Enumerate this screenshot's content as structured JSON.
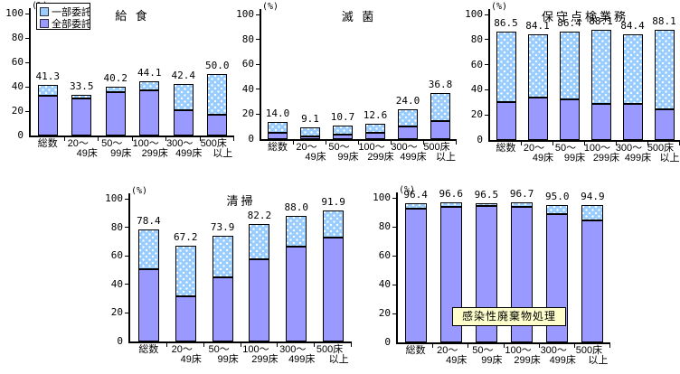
{
  "colors": {
    "partial_fill": "#99CCFF",
    "partial_dot": "#FFFFFF",
    "full_fill": "#9999FF",
    "separator": "#000000",
    "axis": "#000000",
    "title_box_bg": "#FFFFCC"
  },
  "legend": {
    "items": [
      {
        "label": "一部委託",
        "style": "dots"
      },
      {
        "label": "全部委託",
        "style": "solid"
      }
    ]
  },
  "category_lines": [
    [
      "総数"
    ],
    [
      "20〜",
      "49床"
    ],
    [
      "50〜",
      "99床"
    ],
    [
      "100〜",
      "299床"
    ],
    [
      "300〜",
      "499床"
    ],
    [
      "500床",
      "以上"
    ]
  ],
  "chart_data": [
    {
      "type": "stacked-bar",
      "title": "給 食",
      "unit": "(%)",
      "ylim": [
        0,
        100
      ],
      "yticks": [
        0,
        20,
        40,
        60,
        80,
        100
      ],
      "legend_position": "top-left",
      "categories": [
        "総数",
        "20〜49床",
        "50〜99床",
        "100〜299床",
        "300〜499床",
        "500床以上"
      ],
      "totals": [
        41.3,
        33.5,
        40.2,
        44.1,
        42.4,
        50.0
      ],
      "labels": [
        "41.3",
        "33.5",
        "40.2",
        "44.1",
        "42.4",
        "50.0"
      ],
      "series": [
        {
          "name": "全部委託",
          "values": [
            31.5,
            29.5,
            35.0,
            36.0,
            20.0,
            16.0
          ]
        },
        {
          "name": "一部委託",
          "values": [
            9.8,
            4.0,
            5.2,
            8.1,
            22.4,
            34.0
          ]
        }
      ]
    },
    {
      "type": "stacked-bar",
      "title": "滅 菌",
      "unit": "(%)",
      "ylim": [
        0,
        100
      ],
      "yticks": [
        0,
        20,
        40,
        60,
        80,
        100
      ],
      "categories": [
        "総数",
        "20〜49床",
        "50〜99床",
        "100〜299床",
        "300〜499床",
        "500床以上"
      ],
      "totals": [
        14.0,
        9.1,
        10.7,
        12.6,
        24.0,
        36.8
      ],
      "labels": [
        "14.0",
        "9.1",
        "10.7",
        "12.6",
        "24.0",
        "36.8"
      ],
      "series": [
        {
          "name": "全部委託",
          "values": [
            4.5,
            1.5,
            3.0,
            4.5,
            9.5,
            13.5
          ]
        },
        {
          "name": "一部委託",
          "values": [
            9.5,
            7.6,
            7.7,
            8.1,
            14.5,
            23.3
          ]
        }
      ]
    },
    {
      "type": "stacked-bar",
      "title": "保守点検業務",
      "unit": "(%)",
      "ylim": [
        0,
        100
      ],
      "yticks": [
        0,
        20,
        40,
        60,
        80,
        100
      ],
      "categories": [
        "総数",
        "20〜49床",
        "50〜99床",
        "100〜299床",
        "300〜499床",
        "500床以上"
      ],
      "totals": [
        86.5,
        84.1,
        86.4,
        88.1,
        84.4,
        88.1
      ],
      "labels": [
        "86.5",
        "84.1",
        "86.4",
        "88.1",
        "84.4",
        "88.1"
      ],
      "series": [
        {
          "name": "全部委託",
          "values": [
            29.5,
            33.0,
            31.5,
            28.0,
            28.0,
            24.0
          ]
        },
        {
          "name": "一部委託",
          "values": [
            57.0,
            51.1,
            54.9,
            60.1,
            56.4,
            64.1
          ]
        }
      ]
    },
    {
      "type": "stacked-bar",
      "title": "清掃",
      "unit": "(%)",
      "ylim": [
        0,
        100
      ],
      "yticks": [
        0,
        20,
        40,
        60,
        80,
        100
      ],
      "categories": [
        "総数",
        "20〜49床",
        "50〜99床",
        "100〜299床",
        "300〜499床",
        "500床以上"
      ],
      "totals": [
        78.4,
        67.2,
        73.9,
        82.2,
        88.0,
        91.9
      ],
      "labels": [
        "78.4",
        "67.2",
        "73.9",
        "82.2",
        "88.0",
        "91.9"
      ],
      "series": [
        {
          "name": "全部委託",
          "values": [
            50.0,
            31.0,
            44.0,
            57.0,
            66.0,
            72.0
          ]
        },
        {
          "name": "一部委託",
          "values": [
            28.4,
            36.2,
            29.9,
            25.2,
            22.0,
            19.9
          ]
        }
      ]
    },
    {
      "type": "stacked-bar",
      "title": "感染性廃棄物処理",
      "title_boxed": true,
      "unit": "(%)",
      "ylim": [
        0,
        100
      ],
      "yticks": [
        0,
        20,
        40,
        60,
        80,
        100
      ],
      "categories": [
        "総数",
        "20〜49床",
        "50〜99床",
        "100〜299床",
        "300〜499床",
        "500床以上"
      ],
      "totals": [
        96.4,
        96.6,
        96.5,
        96.7,
        95.0,
        94.9
      ],
      "labels": [
        "96.4",
        "96.6",
        "96.5",
        "96.7",
        "95.0",
        "94.9"
      ],
      "series": [
        {
          "name": "全部委託",
          "values": [
            92.0,
            93.0,
            93.5,
            93.0,
            88.0,
            84.0
          ]
        },
        {
          "name": "一部委託",
          "values": [
            4.4,
            3.6,
            3.0,
            3.7,
            7.0,
            10.9
          ]
        }
      ]
    }
  ]
}
